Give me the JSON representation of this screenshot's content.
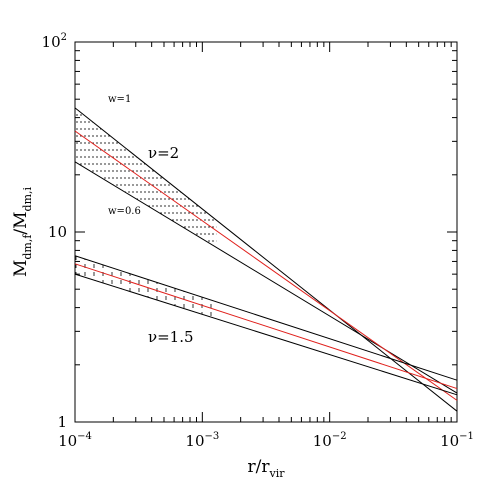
{
  "chart_data": {
    "type": "line",
    "x_label": [
      "r/r",
      "vir"
    ],
    "y_label": [
      "M",
      "dm,f",
      "/M",
      "dm,i"
    ],
    "log_x": true,
    "log_y": true,
    "x": [
      0.0001,
      0.1
    ],
    "xlim": [
      0.0001,
      0.1
    ],
    "ylim": [
      1,
      100
    ],
    "xticks": [
      {
        "value": 0.0001,
        "label": "10",
        "exp": "−4"
      },
      {
        "value": 0.001,
        "label": "10",
        "exp": "−3"
      },
      {
        "value": 0.01,
        "label": "10",
        "exp": "−2"
      },
      {
        "value": 0.1,
        "label": "10",
        "exp": "−1"
      }
    ],
    "yticks": [
      {
        "value": 1,
        "label": "1",
        "exp": ""
      },
      {
        "value": 10,
        "label": "10",
        "exp": ""
      },
      {
        "value": 100,
        "label": "10",
        "exp": "2"
      }
    ],
    "series": [
      {
        "color": "#000000",
        "values": [
          45,
          1.14
        ]
      },
      {
        "color": "#000000",
        "values": [
          23.4,
          1.42
        ]
      },
      {
        "color": "#e0201c",
        "values": [
          34,
          1.3
        ]
      },
      {
        "color": "#000000",
        "values": [
          7.5,
          1.66
        ]
      },
      {
        "color": "#000000",
        "values": [
          6.0,
          1.39
        ]
      },
      {
        "color": "#e0201c",
        "values": [
          6.8,
          1.5
        ]
      }
    ],
    "hatch_bands": [
      [
        0,
        1,
        "dotted"
      ],
      [
        3,
        4,
        "dashed"
      ]
    ],
    "annotations": [
      "w=1",
      "w=0.6",
      "ν=2",
      "ν=1.5"
    ]
  }
}
